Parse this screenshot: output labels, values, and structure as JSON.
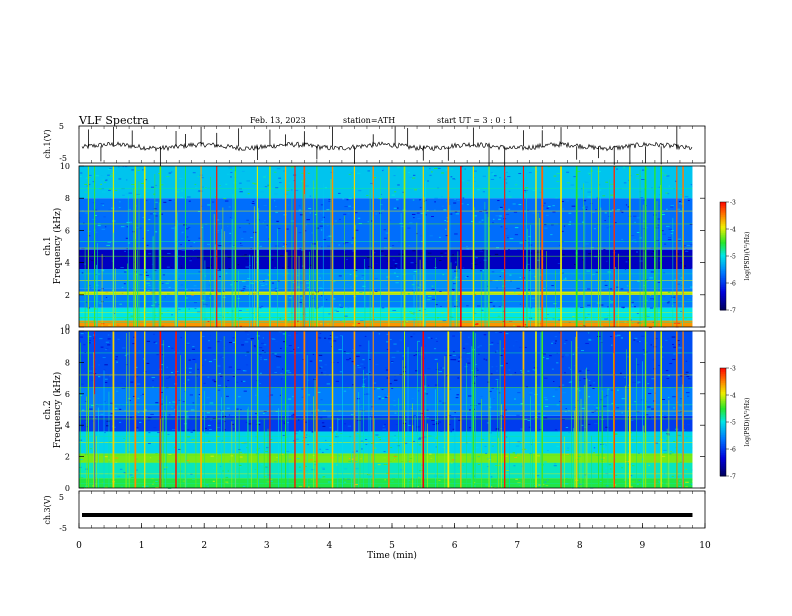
{
  "header": {
    "title": "VLF  Spectra",
    "date": "Feb. 13, 2023",
    "station": "station=ATH",
    "start": "start  UT  =    3  : 0   : 1"
  },
  "colors": {
    "spectrogram_low": "#000080",
    "spectrogram_mid": "#00c8ff",
    "spectrogram_high": "#ff0000",
    "trace": "#000000"
  },
  "chart_data": [
    {
      "type": "line",
      "name": "ch1-waveform",
      "ylabel": "ch.1(V)",
      "ylim": [
        -5,
        5
      ],
      "yticks": [
        "5",
        "-5"
      ],
      "xlim": [
        0,
        10
      ],
      "baseline": -0.5,
      "trace_end": 9.8,
      "spikes_min": [
        0.15,
        0.35,
        0.55,
        0.85,
        1.3,
        1.55,
        1.7,
        1.95,
        2.2,
        2.55,
        2.85,
        3.05,
        3.3,
        3.6,
        3.8,
        4.05,
        4.4,
        4.7,
        5.05,
        5.25,
        5.5,
        5.9,
        6.3,
        6.55,
        6.8,
        7.1,
        7.4,
        7.7,
        7.95,
        8.3,
        8.55,
        8.8,
        9.05,
        9.3,
        9.55
      ]
    },
    {
      "type": "heatmap",
      "name": "ch1-spectrogram",
      "ylabel": "Frequency  (kHz)",
      "channel_label": "ch.1",
      "yticks": [
        "0",
        "2",
        "4",
        "6",
        "8",
        "10"
      ],
      "ylim": [
        0,
        10
      ],
      "xlim": [
        0,
        10
      ],
      "data_end_min": 9.8,
      "colorbar": {
        "label": "log(PSD)(V²/Hz)",
        "ticks": [
          "-3",
          "-4",
          "-5",
          "-6",
          "-7"
        ],
        "range": [
          -7,
          -3
        ]
      },
      "bands_khz": [
        {
          "lo": 0.0,
          "hi": 0.4,
          "level": -3.6
        },
        {
          "lo": 0.4,
          "hi": 1.2,
          "level": -5.0
        },
        {
          "lo": 1.2,
          "hi": 2.4,
          "level": -5.6
        },
        {
          "lo": 2.0,
          "hi": 2.2,
          "level": -4.0
        },
        {
          "lo": 2.4,
          "hi": 3.6,
          "level": -5.5
        },
        {
          "lo": 3.6,
          "hi": 4.8,
          "level": -6.5
        },
        {
          "lo": 4.8,
          "hi": 8.0,
          "level": -5.7
        },
        {
          "lo": 8.0,
          "hi": 10.0,
          "level": -5.2
        }
      ],
      "sferic_times_min": [
        0.15,
        0.25,
        0.55,
        0.9,
        1.05,
        1.3,
        1.55,
        1.7,
        1.95,
        2.2,
        2.5,
        2.85,
        3.05,
        3.3,
        3.45,
        3.6,
        3.8,
        4.05,
        4.4,
        4.7,
        4.95,
        5.2,
        5.5,
        5.9,
        6.1,
        6.3,
        6.55,
        6.8,
        7.1,
        7.3,
        7.4,
        7.7,
        7.95,
        8.3,
        8.55,
        8.8,
        9.05,
        9.2,
        9.3,
        9.55,
        9.65
      ]
    },
    {
      "type": "heatmap",
      "name": "ch2-spectrogram",
      "ylabel": "Frequency  (kHz)",
      "channel_label": "ch.2",
      "yticks": [
        "0",
        "2",
        "4",
        "6",
        "8",
        "10"
      ],
      "ylim": [
        0,
        10
      ],
      "xlim": [
        0,
        10
      ],
      "data_end_min": 9.8,
      "colorbar": {
        "label": "log(PSD)(V²/Hz)",
        "ticks": [
          "-3",
          "-4",
          "-5",
          "-6",
          "-7"
        ],
        "range": [
          -7,
          -3
        ]
      },
      "bands_khz": [
        {
          "lo": 0.0,
          "hi": 0.6,
          "level": -4.6
        },
        {
          "lo": 0.6,
          "hi": 1.6,
          "level": -4.9
        },
        {
          "lo": 1.6,
          "hi": 2.2,
          "level": -4.3
        },
        {
          "lo": 2.2,
          "hi": 3.6,
          "level": -5.1
        },
        {
          "lo": 3.6,
          "hi": 4.6,
          "level": -6.0
        },
        {
          "lo": 4.6,
          "hi": 6.4,
          "level": -5.6
        },
        {
          "lo": 6.4,
          "hi": 10.0,
          "level": -5.9
        }
      ],
      "sferic_times_min": [
        0.15,
        0.25,
        0.55,
        0.9,
        1.05,
        1.3,
        1.55,
        1.7,
        1.95,
        2.2,
        2.5,
        2.85,
        3.05,
        3.3,
        3.45,
        3.6,
        3.8,
        4.05,
        4.4,
        4.7,
        4.95,
        5.2,
        5.5,
        5.9,
        6.1,
        6.3,
        6.55,
        6.8,
        7.1,
        7.3,
        7.4,
        7.7,
        7.95,
        8.3,
        8.55,
        8.8,
        9.05,
        9.2,
        9.3,
        9.55,
        9.65
      ]
    },
    {
      "type": "line",
      "name": "ch3-waveform",
      "ylabel": "ch.3(V)",
      "ylim": [
        -5,
        5
      ],
      "yticks": [
        "5",
        "-5"
      ],
      "xlim": [
        0,
        10
      ],
      "xlabel": "Time  (min)",
      "xticks": [
        "0",
        "1",
        "2",
        "3",
        "4",
        "5",
        "6",
        "7",
        "8",
        "9",
        "10"
      ],
      "baseline": -1.5,
      "trace_end": 9.8
    }
  ]
}
